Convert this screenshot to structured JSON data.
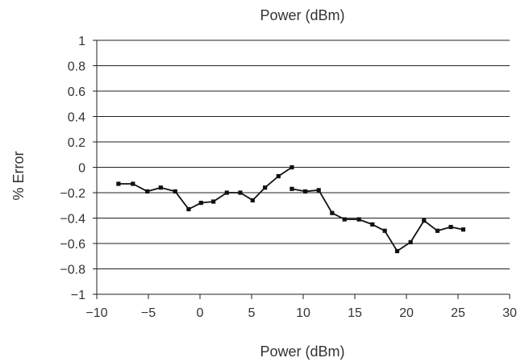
{
  "chart_data": {
    "type": "line",
    "title": "Power (dBm)",
    "xlabel": "Power (dBm)",
    "ylabel": "% Error",
    "xlim": [
      -10,
      30
    ],
    "ylim": [
      -1,
      1
    ],
    "xticks": [
      -10,
      -5,
      0,
      5,
      10,
      15,
      20,
      25,
      30
    ],
    "yticks": [
      1,
      0.8,
      0.6,
      0.4,
      0.2,
      0,
      -0.2,
      -0.4,
      -0.6,
      -0.8,
      -1
    ],
    "xtick_labels": [
      "−10",
      "−5",
      "0",
      "5",
      "10",
      "15",
      "20",
      "25",
      "30"
    ],
    "ytick_labels": [
      "1",
      "0.8",
      "0.6",
      "0.4",
      "0.2",
      "0",
      "−0.2",
      "−0.4",
      "−0.6",
      "−0.8",
      "−1"
    ],
    "grid": "horizontal",
    "series": [
      {
        "x": [
          -7.9,
          -6.5,
          -5.1,
          -3.8,
          -2.4,
          -1.1,
          0.1,
          1.3,
          2.6,
          3.9,
          5.1,
          6.3,
          7.6,
          8.9
        ],
        "values": [
          -0.13,
          -0.13,
          -0.19,
          -0.16,
          -0.19,
          -0.33,
          -0.28,
          -0.27,
          -0.2,
          -0.2,
          -0.26,
          -0.16,
          -0.07,
          0.0
        ]
      },
      {
        "x": [
          8.9,
          10.2,
          11.5,
          12.8,
          14.0,
          15.4,
          16.7,
          17.9,
          19.1,
          20.4,
          21.7,
          23.0,
          24.3,
          25.5
        ],
        "values": [
          -0.17,
          -0.19,
          -0.18,
          -0.36,
          -0.41,
          -0.41,
          -0.45,
          -0.5,
          -0.66,
          -0.59,
          -0.42,
          -0.5,
          -0.47,
          -0.49
        ]
      }
    ],
    "colors": {
      "line": "#111111",
      "grid": "#222222",
      "text": "#333333"
    }
  }
}
